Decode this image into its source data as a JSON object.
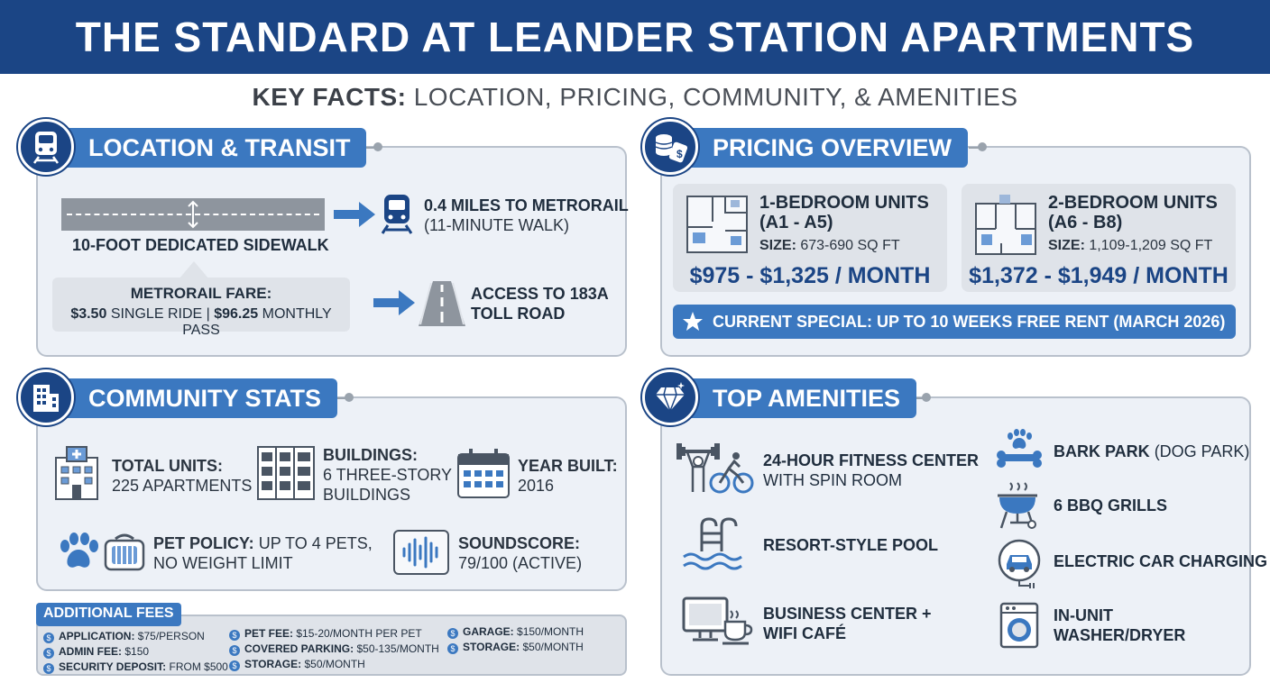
{
  "header": {
    "title": "THE STANDARD AT LEANDER STATION APARTMENTS"
  },
  "subtitle": {
    "bold": "KEY FACTS:",
    "rest": "LOCATION, PRICING, COMMUNITY, & AMENITIES"
  },
  "location": {
    "title": "LOCATION & TRANSIT",
    "sidewalk": "10-FOOT DEDICATED SIDEWALK",
    "metro_distance": "0.4 MILES TO METRORAIL",
    "metro_walk": "(11-MINUTE WALK)",
    "fare_title": "METRORAIL FARE:",
    "fare_single_value": "$3.50",
    "fare_single_label": "SINGLE RIDE",
    "fare_separator": "|",
    "fare_monthly_value": "$96.25",
    "fare_monthly_label": "MONTHLY PASS",
    "toll_line1": "ACCESS TO 183A",
    "toll_line2": "TOLL ROAD"
  },
  "pricing": {
    "title": "PRICING OVERVIEW",
    "units": [
      {
        "title_line1": "1-BEDROOM UNITS",
        "title_line2": "(A1 - A5)",
        "size_label": "SIZE:",
        "size_value": "673-690 SQ FT",
        "price": "$975 - $1,325 / MONTH"
      },
      {
        "title_line1": "2-BEDROOM UNITS",
        "title_line2": "(A6 - B8)",
        "size_label": "SIZE:",
        "size_value": "1,109-1,209 SQ FT",
        "price": "$1,372 - $1,949 / MONTH"
      }
    ],
    "special": "CURRENT SPECIAL: UP TO 10 WEEKS FREE RENT (MARCH 2026)"
  },
  "community": {
    "title": "COMMUNITY STATS",
    "total_units_label": "TOTAL UNITS:",
    "total_units_value": "225 APARTMENTS",
    "buildings_label": "BUILDINGS:",
    "buildings_line1": "6 THREE-STORY",
    "buildings_line2": "BUILDINGS",
    "year_label": "YEAR BUILT:",
    "year_value": "2016",
    "pet_label": "PET POLICY:",
    "pet_value1": "UP TO 4 PETS,",
    "pet_value2": "NO WEIGHT LIMIT",
    "sound_label": "SOUNDSCORE:",
    "sound_value": "79/100 (ACTIVE)"
  },
  "fees": {
    "title": "ADDITIONAL FEES",
    "items": [
      {
        "label": "APPLICATION:",
        "value": "$75/PERSON"
      },
      {
        "label": "ADMIN FEE:",
        "value": "$150"
      },
      {
        "label": "SECURITY DEPOSIT:",
        "value": "FROM $500"
      },
      {
        "label": "PET FEE:",
        "value": "$15-20/MONTH PER PET"
      },
      {
        "label": "COVERED PARKING:",
        "value": "$50-135/MONTH"
      },
      {
        "label": "STORAGE:",
        "value": "$50/MONTH"
      },
      {
        "label": "GARAGE:",
        "value": "$150/MONTH"
      },
      {
        "label": "STORAGE:",
        "value": "$50/MONTH"
      }
    ]
  },
  "amenities": {
    "title": "TOP AMENITIES",
    "fitness_line1": "24-HOUR FITNESS CENTER",
    "fitness_line2": "WITH SPIN ROOM",
    "pool": "RESORT-STYLE POOL",
    "business_line1": "BUSINESS CENTER +",
    "business_line2": "WIFI CAFÉ",
    "bark_bold": "BARK PARK",
    "bark_rest": "(DOG PARK)",
    "bbq": "6 BBQ GRILLS",
    "ev": "ELECTRIC CAR CHARGING",
    "washer_line1": "IN-UNIT",
    "washer_line2": "WASHER/DRYER"
  },
  "colors": {
    "navy": "#1b4585",
    "accent": "#3b78c0",
    "panel": "#edf1f7"
  },
  "icons": [
    "train-icon",
    "road-icon",
    "coins-icon",
    "building-icon",
    "calendar-icon",
    "paw-icon",
    "pet-carrier-icon",
    "sound-wave-icon",
    "diamond-icon",
    "dumbbell-icon",
    "bike-icon",
    "pool-ladder-icon",
    "computer-icon",
    "coffee-icon",
    "bone-icon",
    "grill-icon",
    "ev-car-icon",
    "washer-icon",
    "star-icon",
    "dollar-coin-icon"
  ]
}
